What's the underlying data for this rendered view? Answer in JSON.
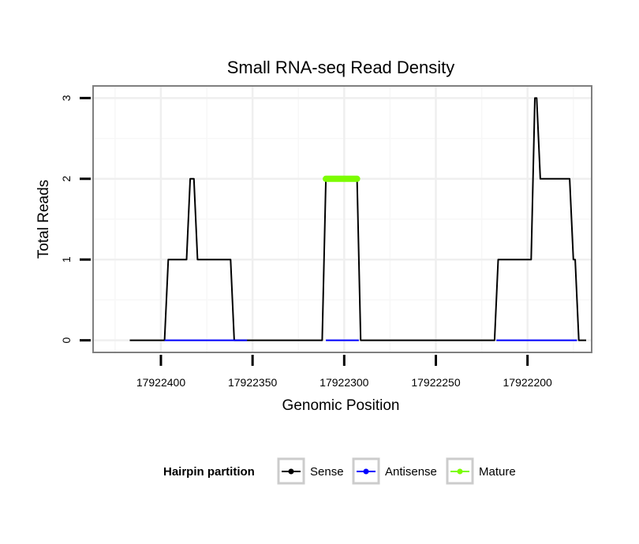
{
  "chart_data": {
    "type": "line",
    "title": "Small RNA-seq Read Density",
    "xlabel": "Genomic Position",
    "ylabel": "Total Reads",
    "x_reversed": true,
    "xlim": [
      17922437,
      17922165
    ],
    "ylim": [
      -0.15,
      3.15
    ],
    "xticks": [
      17922400,
      17922350,
      17922300,
      17922250,
      17922200
    ],
    "xtick_labels": [
      "17922400",
      "17922350",
      "17922300",
      "17922250",
      "17922200"
    ],
    "yticks": [
      0,
      1,
      2,
      3
    ],
    "ytick_labels": [
      "0",
      "1",
      "2",
      "3"
    ],
    "grid": true,
    "legend": {
      "title": "Hairpin partition",
      "position": "bottom",
      "entries": [
        "Sense",
        "Antisense",
        "Mature"
      ]
    },
    "series": [
      {
        "name": "Sense",
        "color": "#000000",
        "x": [
          17922417,
          17922398,
          17922396,
          17922386,
          17922384,
          17922382,
          17922380,
          17922362,
          17922360,
          17922354,
          17922352,
          17922312,
          17922310,
          17922293,
          17922291,
          17922218,
          17922216,
          17922198,
          17922196,
          17922195,
          17922193,
          17922177,
          17922175,
          17922174,
          17922172,
          17922168
        ],
        "y": [
          0,
          0,
          1,
          1,
          2,
          2,
          1,
          1,
          0,
          0,
          0,
          0,
          2,
          2,
          0,
          0,
          1,
          1,
          3,
          3,
          2,
          2,
          1,
          1,
          0,
          0
        ]
      },
      {
        "name": "Antisense",
        "color": "#0000ff",
        "x": [
          17922398,
          17922353,
          17922310,
          17922292,
          17922217,
          17922173
        ],
        "y": [
          0,
          0,
          0,
          0,
          0,
          0
        ]
      },
      {
        "name": "Mature",
        "color": "#7cfc00",
        "x": [
          17922310,
          17922293
        ],
        "y": [
          2,
          2
        ]
      }
    ]
  }
}
